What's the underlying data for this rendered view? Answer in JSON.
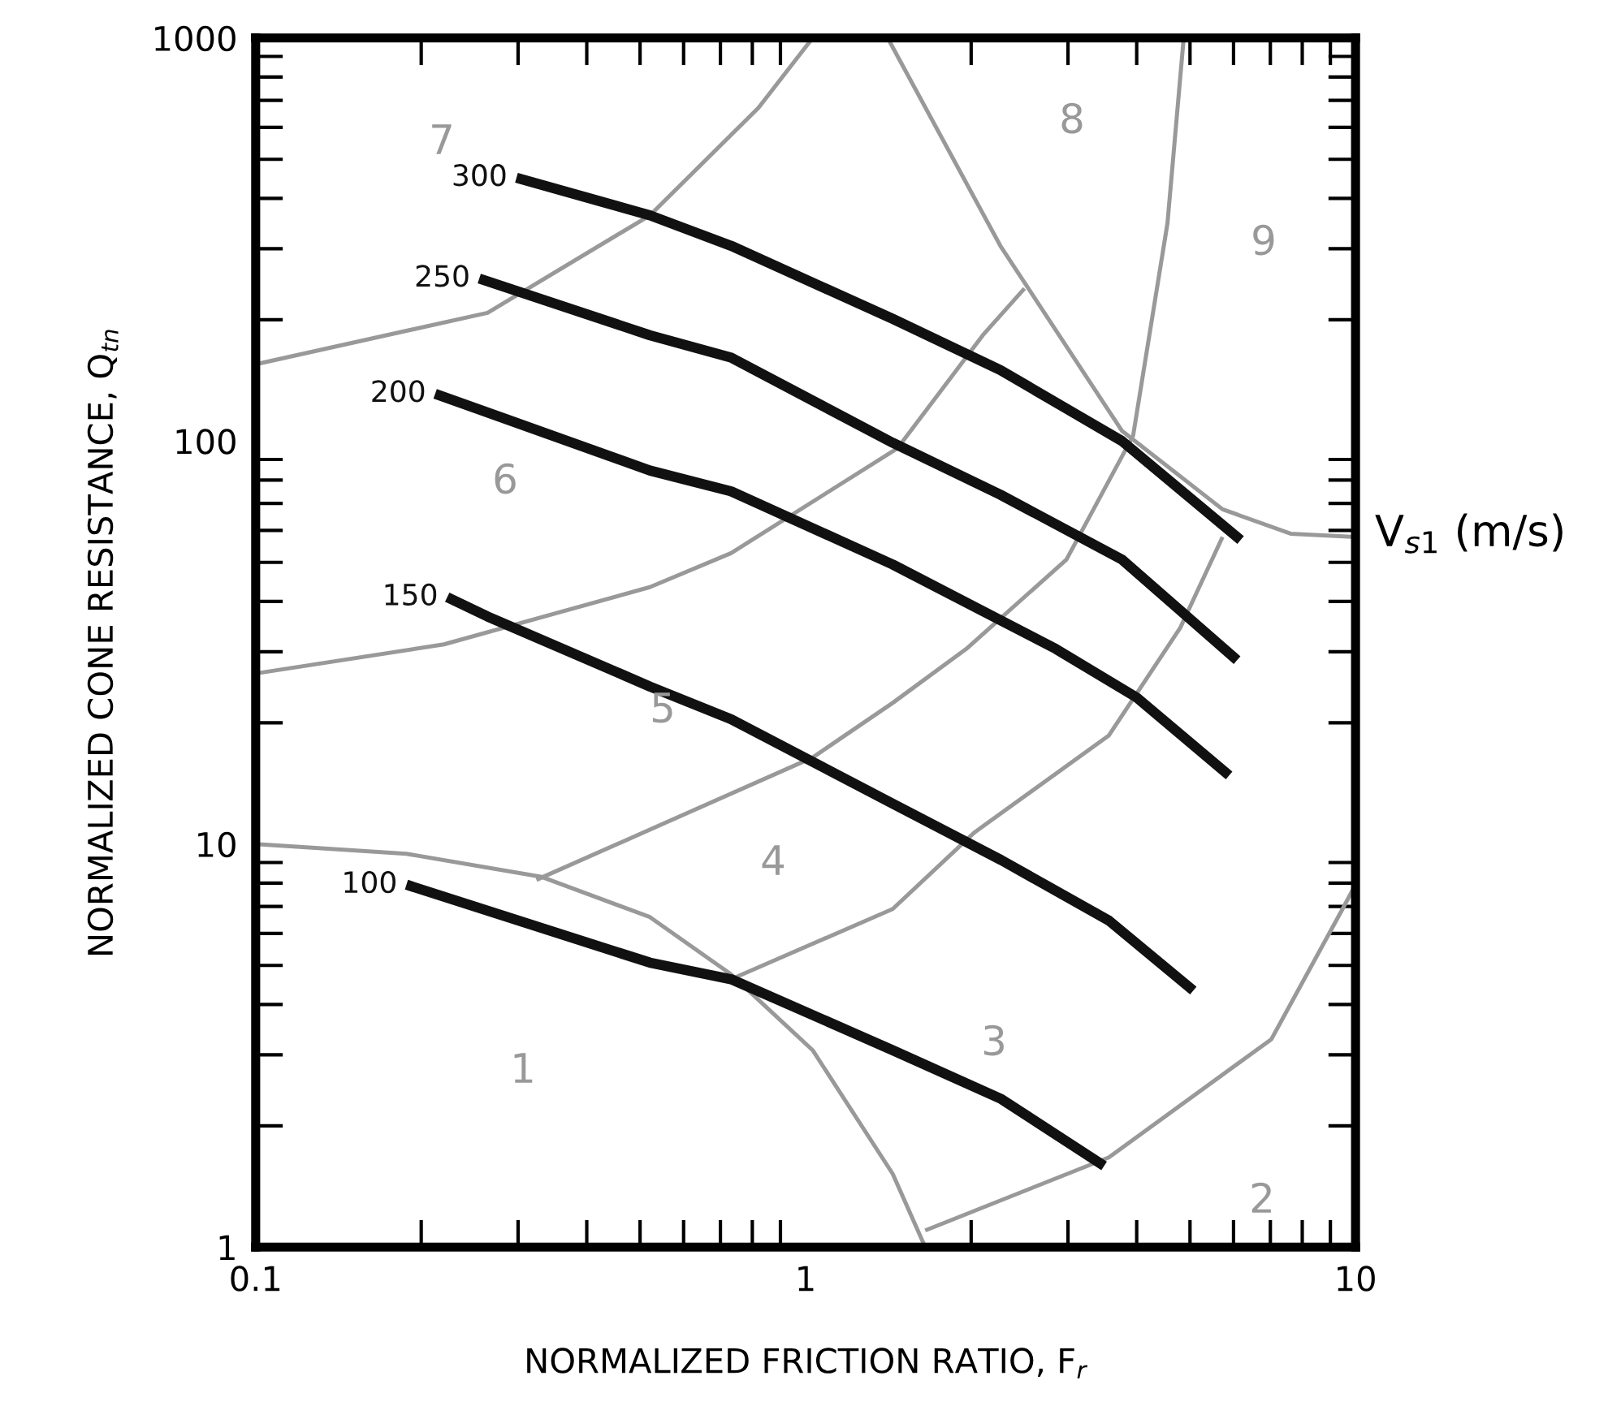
{
  "chart_data": {
    "type": "line",
    "xlabel": "NORMALIZED FRICTION RATIO, F$_{r}$",
    "ylabel": "NORMALIZED CONE RESISTANCE, Q$_{tn}$",
    "log": "xy",
    "xlim": [
      0.1,
      10
    ],
    "ylim": [
      1,
      1000
    ],
    "xticks": [
      0.1,
      1,
      10
    ],
    "yticks": [
      1,
      10,
      100,
      1000
    ],
    "grid": false,
    "legend": false,
    "series": [
      {
        "name": "300",
        "color": "#111111",
        "x": [
          0.298,
          0.521,
          0.732,
          1.44,
          2.26,
          3.76,
          6.18
        ],
        "values": [
          450,
          363,
          305,
          201,
          150,
          100,
          56.8
        ]
      },
      {
        "name": "250",
        "color": "#111111",
        "x": [
          0.255,
          0.521,
          0.732,
          1.44,
          2.26,
          3.76,
          6.09
        ],
        "values": [
          253,
          183,
          161,
          99,
          73.6,
          50.8,
          28.6
        ]
      },
      {
        "name": "200",
        "color": "#111111",
        "x": [
          0.212,
          0.521,
          0.732,
          1.44,
          2.85,
          4.0,
          5.89
        ],
        "values": [
          131,
          84.5,
          75,
          49.4,
          30.5,
          23.1,
          14.8
        ]
      },
      {
        "name": "150",
        "color": "#111111",
        "x": [
          0.223,
          0.264,
          0.521,
          0.732,
          1.44,
          2.27,
          3.56,
          5.07
        ],
        "values": [
          41,
          36.7,
          24.6,
          20.4,
          12.6,
          9.12,
          6.46,
          4.33
        ]
      },
      {
        "name": "100",
        "color": "#111111",
        "x": [
          0.188,
          0.521,
          0.732,
          1.44,
          2.27,
          3.49
        ],
        "values": [
          7.93,
          5.08,
          4.62,
          3.08,
          2.33,
          1.59
        ]
      },
      {
        "color": "#999999",
        "x": [
          0.1,
          0.188,
          0.33,
          0.521,
          0.732,
          1.03,
          1.44,
          1.65
        ],
        "values": [
          10,
          9.46,
          8.3,
          6.59,
          4.75,
          3.08,
          1.52,
          1.0
        ]
      },
      {
        "color": "#999999",
        "x": [
          1.65,
          3.56,
          7.03,
          9.47,
          10
        ],
        "values": [
          1.1,
          1.67,
          3.28,
          6.9,
          7.93
        ]
      },
      {
        "color": "#999999",
        "x": [
          0.1,
          0.22,
          0.521,
          0.732,
          1.47,
          2.1,
          2.5
        ],
        "values": [
          26.5,
          31.3,
          43.4,
          52.7,
          96,
          183,
          239
        ]
      },
      {
        "color": "#999999",
        "x": [
          0.324,
          1.03,
          1.44,
          1.96,
          2.98,
          3.94,
          4.55,
          4.87
        ],
        "values": [
          8.15,
          16.4,
          22.4,
          30.5,
          50.8,
          103,
          347,
          1000
        ]
      },
      {
        "color": "#999999",
        "x": [
          0.732,
          1.44,
          2.03,
          3.56,
          4.8,
          5.73
        ],
        "values": [
          4.62,
          6.9,
          10.7,
          18.6,
          34.4,
          57.8
        ]
      },
      {
        "color": "#999999",
        "x": [
          1.41,
          2.26,
          3.76,
          5.73,
          7.62,
          10
        ],
        "values": [
          1000,
          305,
          106,
          67.7,
          58.9,
          57.8
        ]
      },
      {
        "color": "#999999",
        "x": [
          0.1,
          0.264,
          0.521,
          0.821,
          1.03
        ],
        "values": [
          155,
          208,
          363,
          671,
          1000
        ]
      }
    ],
    "annotations": [
      "1",
      "2",
      "3",
      "4",
      "5",
      "6",
      "7",
      "8",
      "9",
      "V$_{s1}$ (m/s)"
    ]
  }
}
